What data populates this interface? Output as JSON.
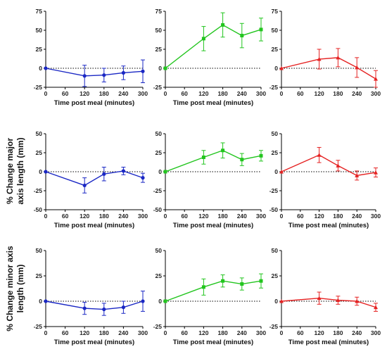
{
  "figure": {
    "row_labels": [
      [],
      [
        "% Change major",
        "axis length (mm)"
      ],
      [
        "% Change minor axis",
        "length (mm)"
      ]
    ],
    "series_colors": [
      "#1a27c4",
      "#22c51e",
      "#e52222"
    ]
  },
  "chart_data": [
    {
      "type": "line",
      "row": 0,
      "col": 0,
      "xlabel": "Time post meal (minutes)",
      "ylabel": "",
      "x": [
        0,
        120,
        180,
        240,
        300
      ],
      "xticks": [
        "0",
        "60",
        "120",
        "180",
        "240",
        "300"
      ],
      "xtick_values": [
        0,
        60,
        120,
        180,
        240,
        300
      ],
      "ylim": [
        -25,
        75
      ],
      "yticks": [
        -25,
        0,
        25,
        50,
        75
      ],
      "series": [
        {
          "color": "#1a27c4",
          "marker": "circle",
          "values": [
            0,
            -10,
            -9,
            -6,
            -4
          ],
          "err": [
            0,
            14,
            9,
            9,
            15
          ]
        }
      ]
    },
    {
      "type": "line",
      "row": 0,
      "col": 1,
      "xlabel": "Time post meal (minutes)",
      "ylabel": "",
      "x": [
        0,
        120,
        180,
        240,
        300
      ],
      "xticks": [
        "0",
        "60",
        "120",
        "180",
        "240",
        "300"
      ],
      "xtick_values": [
        0,
        60,
        120,
        180,
        240,
        300
      ],
      "ylim": [
        -25,
        75
      ],
      "yticks": [
        -25,
        0,
        25,
        50,
        75
      ],
      "series": [
        {
          "color": "#22c51e",
          "marker": "square",
          "values": [
            0,
            39,
            57,
            43,
            51
          ],
          "err": [
            0,
            16,
            16,
            16,
            15
          ]
        }
      ]
    },
    {
      "type": "line",
      "row": 0,
      "col": 2,
      "xlabel": "",
      "ylabel": "",
      "x": [
        0,
        120,
        180,
        240,
        300
      ],
      "xticks": [
        "0",
        "60",
        "120",
        "180",
        "240",
        "300"
      ],
      "xtick_values": [
        0,
        60,
        120,
        180,
        240,
        300
      ],
      "ylim": [
        -25,
        75
      ],
      "yticks": [
        -25,
        0,
        25,
        50,
        75
      ],
      "series": [
        {
          "color": "#e52222",
          "marker": "triangle",
          "values": [
            0,
            12,
            14,
            1,
            -14
          ],
          "err": [
            0,
            13,
            12,
            13,
            11
          ]
        }
      ]
    },
    {
      "type": "line",
      "row": 1,
      "col": 0,
      "xlabel": "Time post meal (minutes)",
      "ylabel": "",
      "x": [
        0,
        120,
        180,
        240,
        300
      ],
      "xticks": [
        "0",
        "60",
        "120",
        "180",
        "240",
        "300"
      ],
      "xtick_values": [
        0,
        60,
        120,
        180,
        240,
        300
      ],
      "ylim": [
        -50,
        50
      ],
      "yticks": [
        -50,
        -25,
        0,
        25,
        50
      ],
      "series": [
        {
          "color": "#1a27c4",
          "marker": "circle",
          "values": [
            0,
            -18,
            -3,
            1,
            -8
          ],
          "err": [
            0,
            10,
            9,
            5,
            6
          ]
        }
      ]
    },
    {
      "type": "line",
      "row": 1,
      "col": 1,
      "xlabel": "Time post meal (minutes)",
      "ylabel": "",
      "x": [
        0,
        120,
        180,
        240,
        300
      ],
      "xticks": [
        "0",
        "60",
        "120",
        "180",
        "240",
        "300"
      ],
      "xtick_values": [
        0,
        60,
        120,
        180,
        240,
        300
      ],
      "ylim": [
        -50,
        50
      ],
      "yticks": [
        -50,
        -25,
        0,
        25,
        50
      ],
      "series": [
        {
          "color": "#22c51e",
          "marker": "square",
          "values": [
            0,
            19,
            28,
            16,
            21
          ],
          "err": [
            0,
            9,
            10,
            8,
            7
          ]
        }
      ]
    },
    {
      "type": "line",
      "row": 1,
      "col": 2,
      "xlabel": "Time post meal (minutes)",
      "ylabel": "",
      "x": [
        0,
        120,
        180,
        240,
        300
      ],
      "xticks": [
        "0",
        "60",
        "120",
        "180",
        "240",
        "300"
      ],
      "xtick_values": [
        0,
        60,
        120,
        180,
        240,
        300
      ],
      "ylim": [
        -50,
        50
      ],
      "yticks": [
        -50,
        -25,
        0,
        25,
        50
      ],
      "series": [
        {
          "color": "#e52222",
          "marker": "triangle",
          "values": [
            0,
            22,
            8,
            -5,
            -1
          ],
          "err": [
            0,
            10,
            7,
            6,
            6
          ]
        }
      ]
    },
    {
      "type": "line",
      "row": 2,
      "col": 0,
      "xlabel": "Time post meal (minutes)",
      "ylabel": "",
      "x": [
        0,
        120,
        180,
        240,
        300
      ],
      "xticks": [
        "0",
        "60",
        "120",
        "180",
        "240",
        "300"
      ],
      "xtick_values": [
        0,
        60,
        120,
        180,
        240,
        300
      ],
      "ylim": [
        -25,
        50
      ],
      "yticks": [
        -25,
        0,
        25,
        50
      ],
      "series": [
        {
          "color": "#1a27c4",
          "marker": "circle",
          "values": [
            0,
            -7,
            -8,
            -6,
            0
          ],
          "err": [
            0,
            6,
            6,
            6,
            10
          ]
        }
      ]
    },
    {
      "type": "line",
      "row": 2,
      "col": 1,
      "xlabel": "Time post meal (minutes)",
      "ylabel": "",
      "x": [
        0,
        120,
        180,
        240,
        300
      ],
      "xticks": [
        "0",
        "60",
        "120",
        "180",
        "240",
        "300"
      ],
      "xtick_values": [
        0,
        60,
        120,
        180,
        240,
        300
      ],
      "ylim": [
        -25,
        50
      ],
      "yticks": [
        -25,
        0,
        25,
        50
      ],
      "series": [
        {
          "color": "#22c51e",
          "marker": "square",
          "values": [
            0,
            14,
            20,
            17,
            20
          ],
          "err": [
            0,
            8,
            6,
            6,
            7
          ]
        }
      ]
    },
    {
      "type": "line",
      "row": 2,
      "col": 2,
      "xlabel": "Time post meal (minutes)",
      "ylabel": "",
      "x": [
        0,
        120,
        180,
        240,
        300
      ],
      "xticks": [
        "0",
        "60",
        "120",
        "180",
        "240",
        "300"
      ],
      "xtick_values": [
        0,
        60,
        120,
        180,
        240,
        300
      ],
      "ylim": [
        -25,
        50
      ],
      "yticks": [
        -25,
        0,
        25,
        50
      ],
      "series": [
        {
          "color": "#e52222",
          "marker": "triangle",
          "values": [
            0,
            3,
            1,
            0,
            -6
          ],
          "err": [
            0,
            6,
            4,
            4,
            4
          ]
        }
      ]
    }
  ]
}
